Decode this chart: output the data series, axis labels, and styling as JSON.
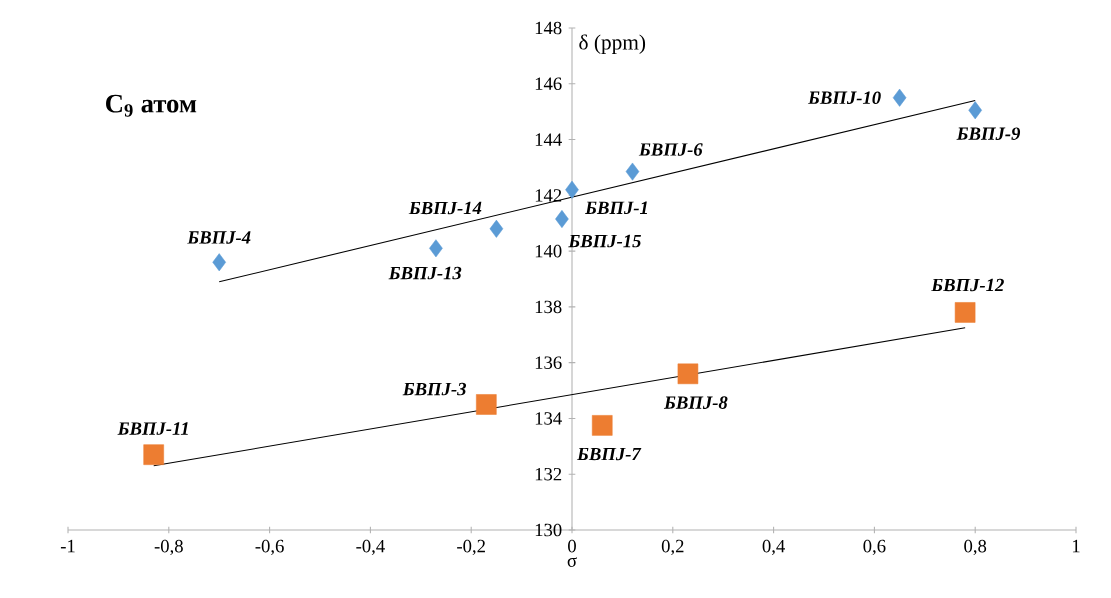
{
  "chart_data": {
    "type": "scatter",
    "title": "C$_{9}$ атом",
    "xlabel": "σ",
    "ylabel": "δ (ppm)",
    "xlim": [
      -1,
      1
    ],
    "ylim": [
      130,
      148
    ],
    "xticks": [
      -1,
      {
        "value": -0.8,
        "label": "-0,8"
      },
      {
        "value": -0.6,
        "label": "-0,6"
      },
      {
        "value": -0.4,
        "label": "-0,4"
      },
      {
        "value": -0.2,
        "label": "-0,2"
      },
      0,
      {
        "value": 0.2,
        "label": "0,2"
      },
      {
        "value": 0.4,
        "label": "0,4"
      },
      {
        "value": 0.6,
        "label": "0,6"
      },
      {
        "value": 0.8,
        "label": "0,8"
      },
      1
    ],
    "yticks": [
      130,
      132,
      134,
      136,
      138,
      140,
      142,
      144,
      146,
      148
    ],
    "series": [
      {
        "type": "scatter",
        "color": "#5b9bd5",
        "marker": "diamond",
        "x": [
          -0.7,
          -0.27,
          -0.15,
          -0.02,
          0,
          0.12,
          0.65,
          0.8
        ],
        "values": [
          139.6,
          140.1,
          140.8,
          141.15,
          142.2,
          142.85,
          145.5,
          145.05
        ]
      },
      {
        "type": "scatter",
        "color": "#ed7d31",
        "marker": "square",
        "x": [
          -0.83,
          -0.17,
          0.06,
          0.23,
          0.78
        ],
        "values": [
          132.7,
          134.5,
          133.75,
          135.6,
          137.8
        ]
      },
      {
        "type": "line",
        "color": "#000000",
        "marker": "none",
        "x": [
          -0.7,
          0.8
        ],
        "values": [
          138.9,
          145.4
        ]
      },
      {
        "type": "line",
        "color": "#000000",
        "marker": "none",
        "x": [
          -0.83,
          0.78
        ],
        "values": [
          132.3,
          137.25
        ]
      }
    ],
    "annotations": [
      {
        "text": "БВПJ-4",
        "x": -0.7,
        "y": 139.6
      },
      {
        "text": "БВПJ-13",
        "x": -0.27,
        "y": 140.1
      },
      {
        "text": "БВПJ-14",
        "x": -0.15,
        "y": 140.8
      },
      {
        "text": "БВПJ-15",
        "x": -0.02,
        "y": 141.15
      },
      {
        "text": "БВПJ-1",
        "x": 0,
        "y": 142.2
      },
      {
        "text": "БВПJ-6",
        "x": 0.12,
        "y": 142.85
      },
      {
        "text": "БВПJ-10",
        "x": 0.65,
        "y": 145.5
      },
      {
        "text": "БВПJ-9",
        "x": 0.8,
        "y": 145.05
      },
      {
        "text": "БВПJ-11",
        "x": -0.83,
        "y": 132.7
      },
      {
        "text": "БВПJ-3",
        "x": -0.17,
        "y": 134.5
      },
      {
        "text": "БВПJ-7",
        "x": 0.06,
        "y": 133.75
      },
      {
        "text": "БВПJ-8",
        "x": 0.23,
        "y": 135.6
      },
      {
        "text": "БВПJ-12",
        "x": 0.78,
        "y": 137.8
      }
    ]
  }
}
